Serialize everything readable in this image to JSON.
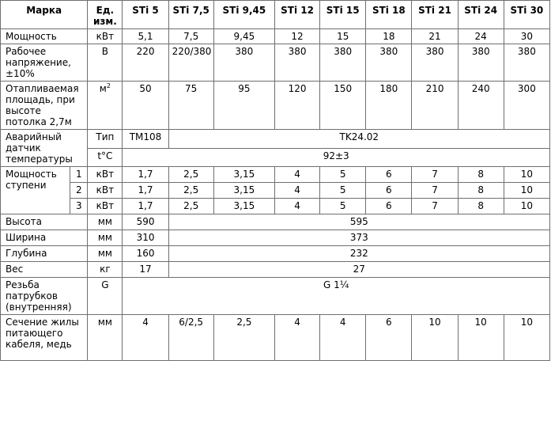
{
  "header": {
    "marka": "Марка",
    "units": "Ед. изм.",
    "models": [
      "STi 5",
      "STi 7,5",
      "STi 9,45",
      "STi 12",
      "STi 15",
      "STi 18",
      "STi 21",
      "STi 24",
      "STi 30"
    ]
  },
  "power": {
    "label": "Мощность",
    "unit": "кВт",
    "values": [
      "5,1",
      "7,5",
      "9,45",
      "12",
      "15",
      "18",
      "21",
      "24",
      "30"
    ]
  },
  "voltage": {
    "label": "Рабочее напряжение, ±10%",
    "unit": "В",
    "values": [
      "220",
      "220/380",
      "380",
      "380",
      "380",
      "380",
      "380",
      "380",
      "380"
    ]
  },
  "area": {
    "label": "Отапливаемая площадь, при высоте потолка 2,7м",
    "unit_base": "м",
    "unit_sup": "2",
    "values": [
      "50",
      "75",
      "95",
      "120",
      "150",
      "180",
      "210",
      "240",
      "300"
    ]
  },
  "sensor": {
    "label": "Аварийный датчик температуры",
    "type_label": "Тип",
    "type_first": "TM108",
    "type_rest": "TK24.02",
    "temp_label": "t°C",
    "temp_value": "92±3"
  },
  "stage": {
    "label": "Мощность ступени",
    "rows": [
      {
        "num": "1",
        "unit": "кВт",
        "values": [
          "1,7",
          "2,5",
          "3,15",
          "4",
          "5",
          "6",
          "7",
          "8",
          "10"
        ]
      },
      {
        "num": "2",
        "unit": "кВт",
        "values": [
          "1,7",
          "2,5",
          "3,15",
          "4",
          "5",
          "6",
          "7",
          "8",
          "10"
        ]
      },
      {
        "num": "3",
        "unit": "кВт",
        "values": [
          "1,7",
          "2,5",
          "3,15",
          "4",
          "5",
          "6",
          "7",
          "8",
          "10"
        ]
      }
    ]
  },
  "height": {
    "label": "Высота",
    "unit": "мм",
    "first": "590",
    "rest": "595"
  },
  "width": {
    "label": "Ширина",
    "unit": "мм",
    "first": "310",
    "rest": "373"
  },
  "depth": {
    "label": "Глубина",
    "unit": "мм",
    "first": "160",
    "rest": "232"
  },
  "weight": {
    "label": "Вес",
    "unit": "кг",
    "first": "17",
    "rest": "27"
  },
  "thread": {
    "label": "Резьба патрубков (внутренняя)",
    "unit": "G",
    "value": "G 1¼"
  },
  "cable": {
    "label": "Сечение жилы питающего кабеля, медь",
    "unit": "мм",
    "values": [
      "4",
      "6/2,5",
      "2,5",
      "4",
      "4",
      "6",
      "10",
      "10",
      "10"
    ]
  }
}
